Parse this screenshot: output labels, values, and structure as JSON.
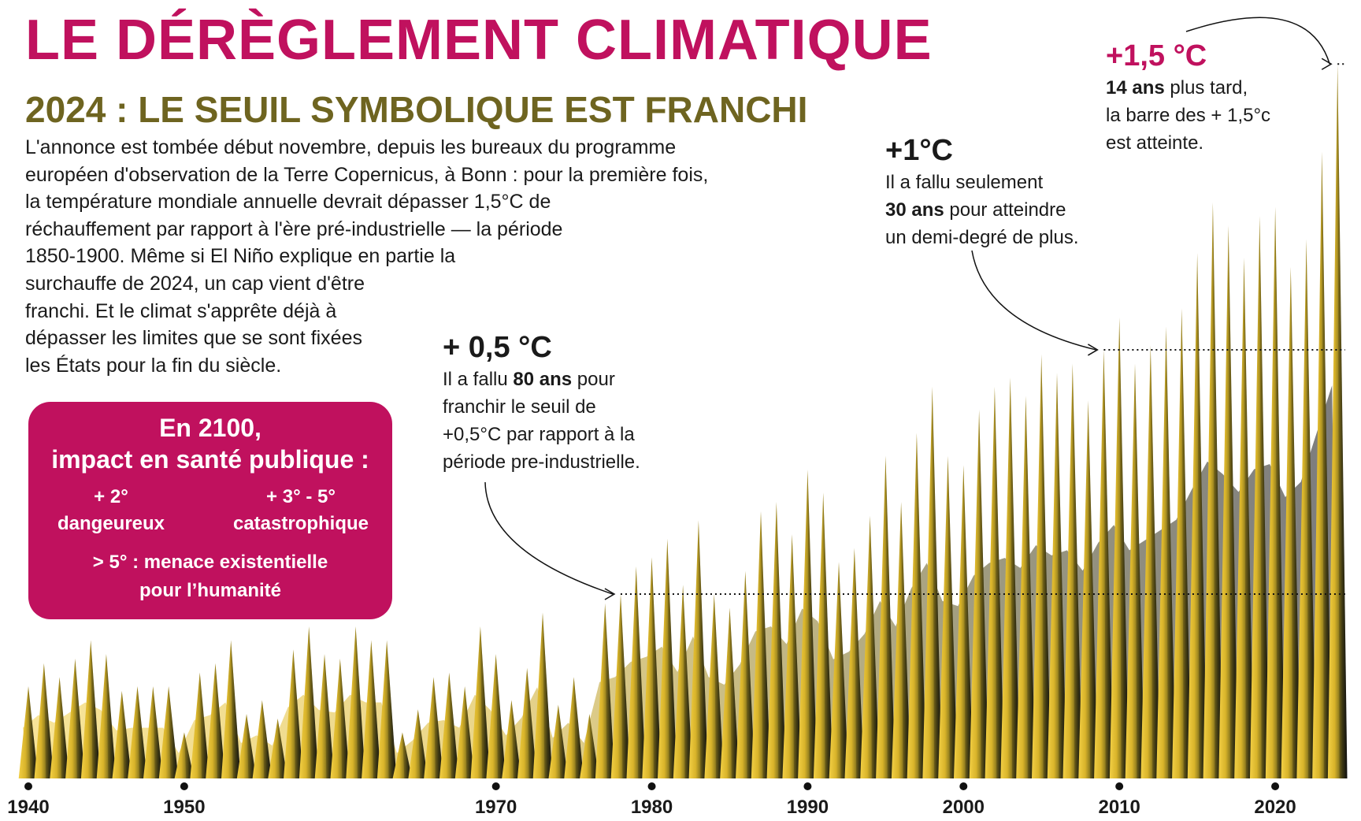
{
  "header": {
    "title": "LE DÉRÈGLEMENT CLIMATIQUE",
    "subtitle": "2024 : LE SEUIL SYMBOLIQUE EST FRANCHI"
  },
  "intro": {
    "lines": [
      "L'annonce est tombée début novembre, depuis les bureaux du programme",
      "européen d'observation de la Terre Copernicus, à Bonn : pour la première fois,",
      "la température mondiale annuelle devrait dépasser 1,5°C de",
      "réchauffement par rapport à l'ère pré-industrielle — la période",
      "1850-1900. Même si El Niño explique en partie la",
      "surchauffe de 2024, un cap vient d'être",
      "franchi. Et le climat s'apprête déjà à",
      "dépasser les limites que se sont fixées",
      "les États pour la fin du siècle."
    ]
  },
  "infobox": {
    "heading_line1": "En 2100,",
    "heading_line2": "impact en santé publique :",
    "col1_value": "+   2°",
    "col1_label": "dangeureux",
    "col2_value": "+   3° - 5°",
    "col2_label": "catastrophique",
    "bottom_line1": "> 5° : menace existentielle",
    "bottom_line2": "pour l’humanité"
  },
  "annotations": {
    "half": {
      "big": "+ 0,5 °C",
      "l1_pre": "Il a fallu ",
      "l1_bold": "80 ans",
      "l1_post": " pour",
      "l2": "franchir le seuil de",
      "l3": "+0,5°C par rapport à la",
      "l4": "période pre-industrielle."
    },
    "one": {
      "big": "+1°C",
      "l1": "Il a fallu seulement",
      "l2_bold": "30 ans",
      "l2_post": " pour atteindre",
      "l3": "un demi-degré de plus."
    },
    "onehalf": {
      "big": "+1,5 °C",
      "l1_bold": "14 ans",
      "l1_post": " plus tard,",
      "l2": "la barre des + 1,5°c",
      "l3": "est atteinte."
    }
  },
  "colors": {
    "title": "#c0115e",
    "subtitle": "#6e6420",
    "box": "#c0115e",
    "spike_early": "#e8c23a",
    "spike_late": "#141416"
  },
  "chart_data": {
    "type": "area",
    "x_tick_labels": [
      "1940",
      "1950",
      "1970",
      "1980",
      "1990",
      "2000",
      "2010",
      "2020"
    ],
    "x_ticks": [
      1940,
      1950,
      1970,
      1980,
      1990,
      2000,
      2010,
      2020
    ],
    "xlim": [
      1940,
      2025
    ],
    "thresholds": [
      {
        "label": "+ 0,5 °C",
        "year": 1978
      },
      {
        "label": "+1°C",
        "year": 2009
      },
      {
        "label": "+1,5 °C",
        "year": 2024
      }
    ],
    "series": [
      {
        "x": [
          1940,
          1941,
          1942,
          1943,
          1944,
          1945,
          1946,
          1947,
          1948,
          1949,
          1950,
          1951,
          1952,
          1953,
          1954,
          1955,
          1956,
          1957,
          1958,
          1959,
          1960,
          1961,
          1962,
          1963,
          1964,
          1965,
          1966,
          1967,
          1968,
          1969,
          1970,
          1971,
          1972,
          1973,
          1974,
          1975,
          1976,
          1977,
          1978,
          1979,
          1980,
          1981,
          1982,
          1983,
          1984,
          1985,
          1986,
          1987,
          1988,
          1989,
          1990,
          1991,
          1992,
          1993,
          1994,
          1995,
          1996,
          1997,
          1998,
          1999,
          2000,
          2001,
          2002,
          2003,
          2004,
          2005,
          2006,
          2007,
          2008,
          2009,
          2010,
          2011,
          2012,
          2013,
          2014,
          2015,
          2016,
          2017,
          2018,
          2019,
          2020,
          2021,
          2022,
          2023,
          2024
        ],
        "y": [
          0.2,
          0.25,
          0.22,
          0.26,
          0.3,
          0.27,
          0.19,
          0.2,
          0.2,
          0.2,
          0.1,
          0.23,
          0.25,
          0.3,
          0.14,
          0.17,
          0.13,
          0.28,
          0.33,
          0.27,
          0.26,
          0.33,
          0.3,
          0.3,
          0.1,
          0.15,
          0.22,
          0.23,
          0.2,
          0.33,
          0.27,
          0.17,
          0.24,
          0.36,
          0.16,
          0.22,
          0.14,
          0.38,
          0.4,
          0.46,
          0.48,
          0.52,
          0.42,
          0.56,
          0.4,
          0.37,
          0.45,
          0.58,
          0.6,
          0.53,
          0.67,
          0.62,
          0.47,
          0.5,
          0.57,
          0.7,
          0.6,
          0.75,
          0.85,
          0.7,
          0.68,
          0.8,
          0.85,
          0.87,
          0.83,
          0.92,
          0.88,
          0.9,
          0.82,
          0.93,
          1.0,
          0.9,
          0.94,
          0.98,
          1.02,
          1.14,
          1.25,
          1.2,
          1.13,
          1.22,
          1.24,
          1.11,
          1.17,
          1.36,
          1.55
        ]
      }
    ],
    "title": "",
    "xlabel": "",
    "ylabel": ""
  }
}
